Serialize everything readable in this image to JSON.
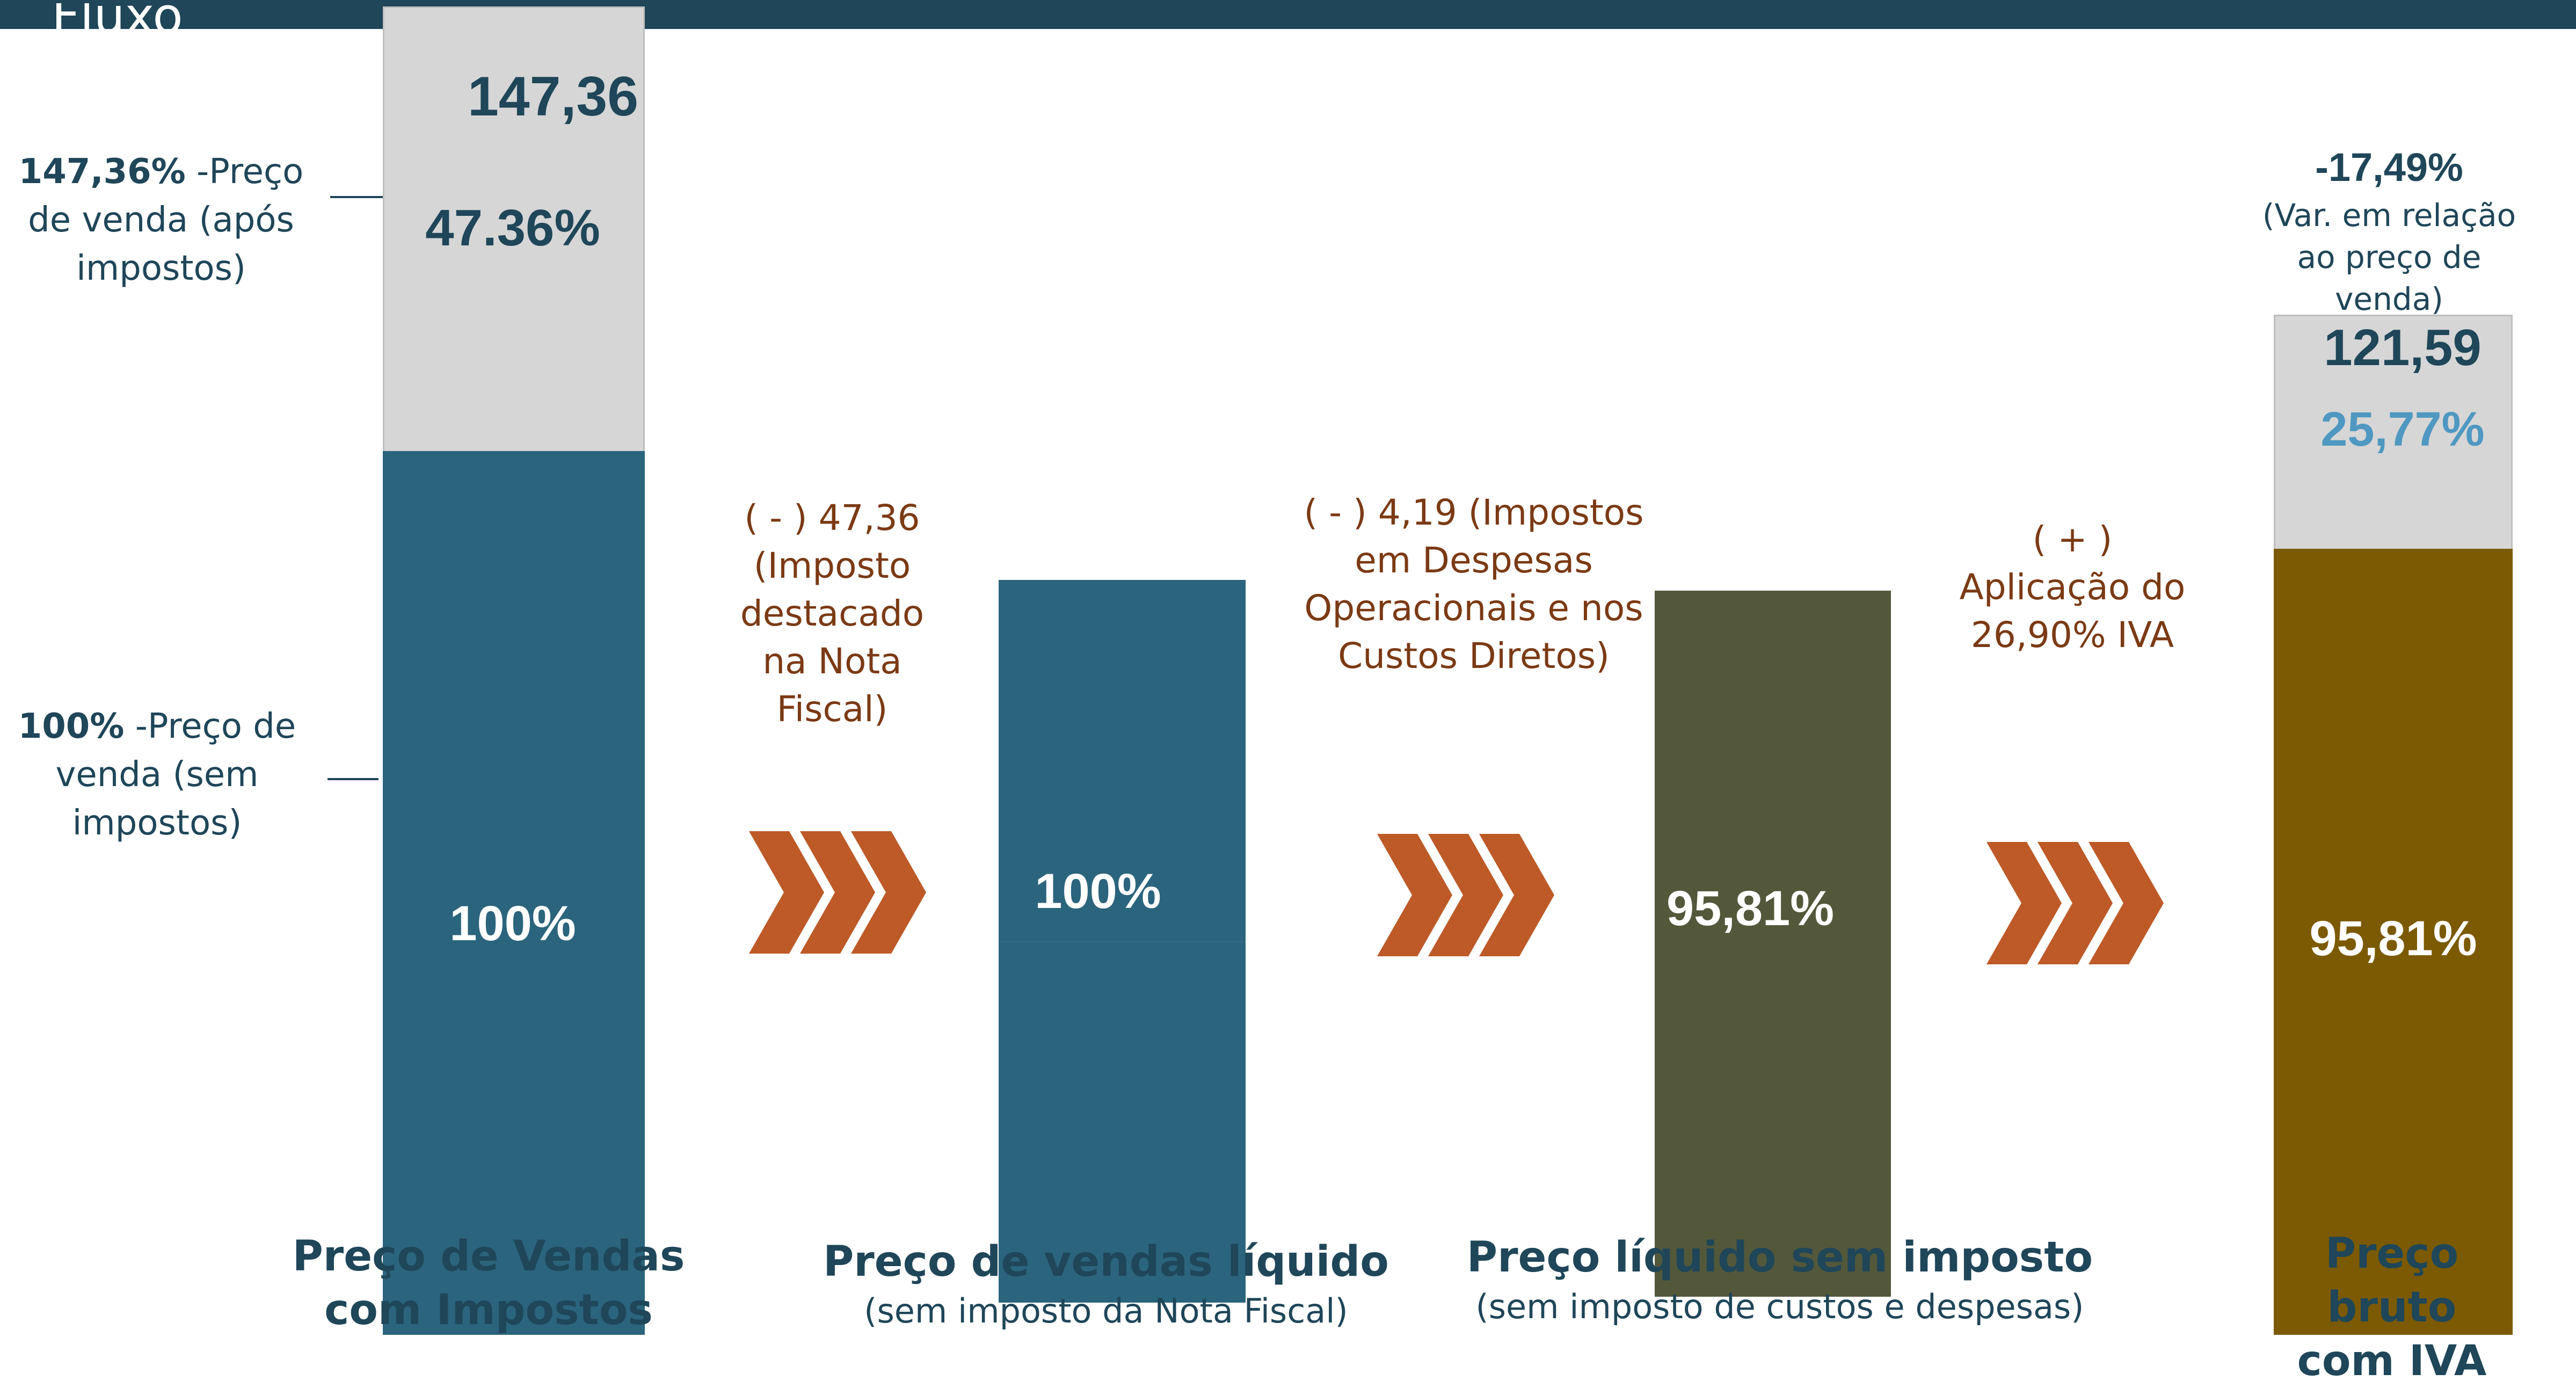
{
  "header": {
    "title": "Fluxo"
  },
  "colors": {
    "header_bar": "#1f4659",
    "bar_teal": "#2b647d",
    "bar_olive": "#53583b",
    "bar_gold": "#7c5a03",
    "bar_grey": "#d6d6d6",
    "text_dark": "#1f4659",
    "text_light_blue": "#4e98c1",
    "annotation": "#7b3a14",
    "chevron": "#bd5a27"
  },
  "side_labels": {
    "upper": {
      "bold": "147,36%",
      "rest": " -Preço de venda (após impostos)"
    },
    "lower": {
      "bold": "100%",
      "rest": " -Preço de venda (sem impostos)"
    }
  },
  "chart_data": {
    "type": "bar",
    "subtype": "waterfall-stacked",
    "categories": [
      "Preço de Vendas com Impostos",
      "Preço de vendas líquido",
      "Preço líquido sem imposto",
      "Preço bruto com IVA"
    ],
    "subcaptions": [
      "",
      "(sem imposto da Nota Fiscal)",
      "(sem imposto de custos e despesas)",
      ""
    ],
    "ylim": [
      0,
      147.36
    ],
    "bars": [
      {
        "base": 100,
        "top": 147.36,
        "base_label": "100%",
        "top_label": "47.36%",
        "value_label": "147,36"
      },
      {
        "base": 100,
        "top": 0,
        "base_label": "100%",
        "top_label": "",
        "value_label": ""
      },
      {
        "base": 95.81,
        "top": 0,
        "base_label": "95,81%",
        "top_label": "",
        "value_label": ""
      },
      {
        "base": 95.81,
        "top": 121.59,
        "base_label": "95,81%",
        "top_label": "25,77%",
        "value_label": "121,59"
      }
    ],
    "steps": [
      "( - ) 47,36 (Imposto destacado na Nota Fiscal)",
      "( - ) 4,19 (Impostos em Despesas Operacionais e nos Custos Diretos)",
      "( + ) Aplicação do 26,90% IVA"
    ],
    "variation": {
      "value": "-17,49%",
      "note": "(Var. em relação ao preço de venda)"
    },
    "xlabel": "",
    "ylabel": ""
  }
}
